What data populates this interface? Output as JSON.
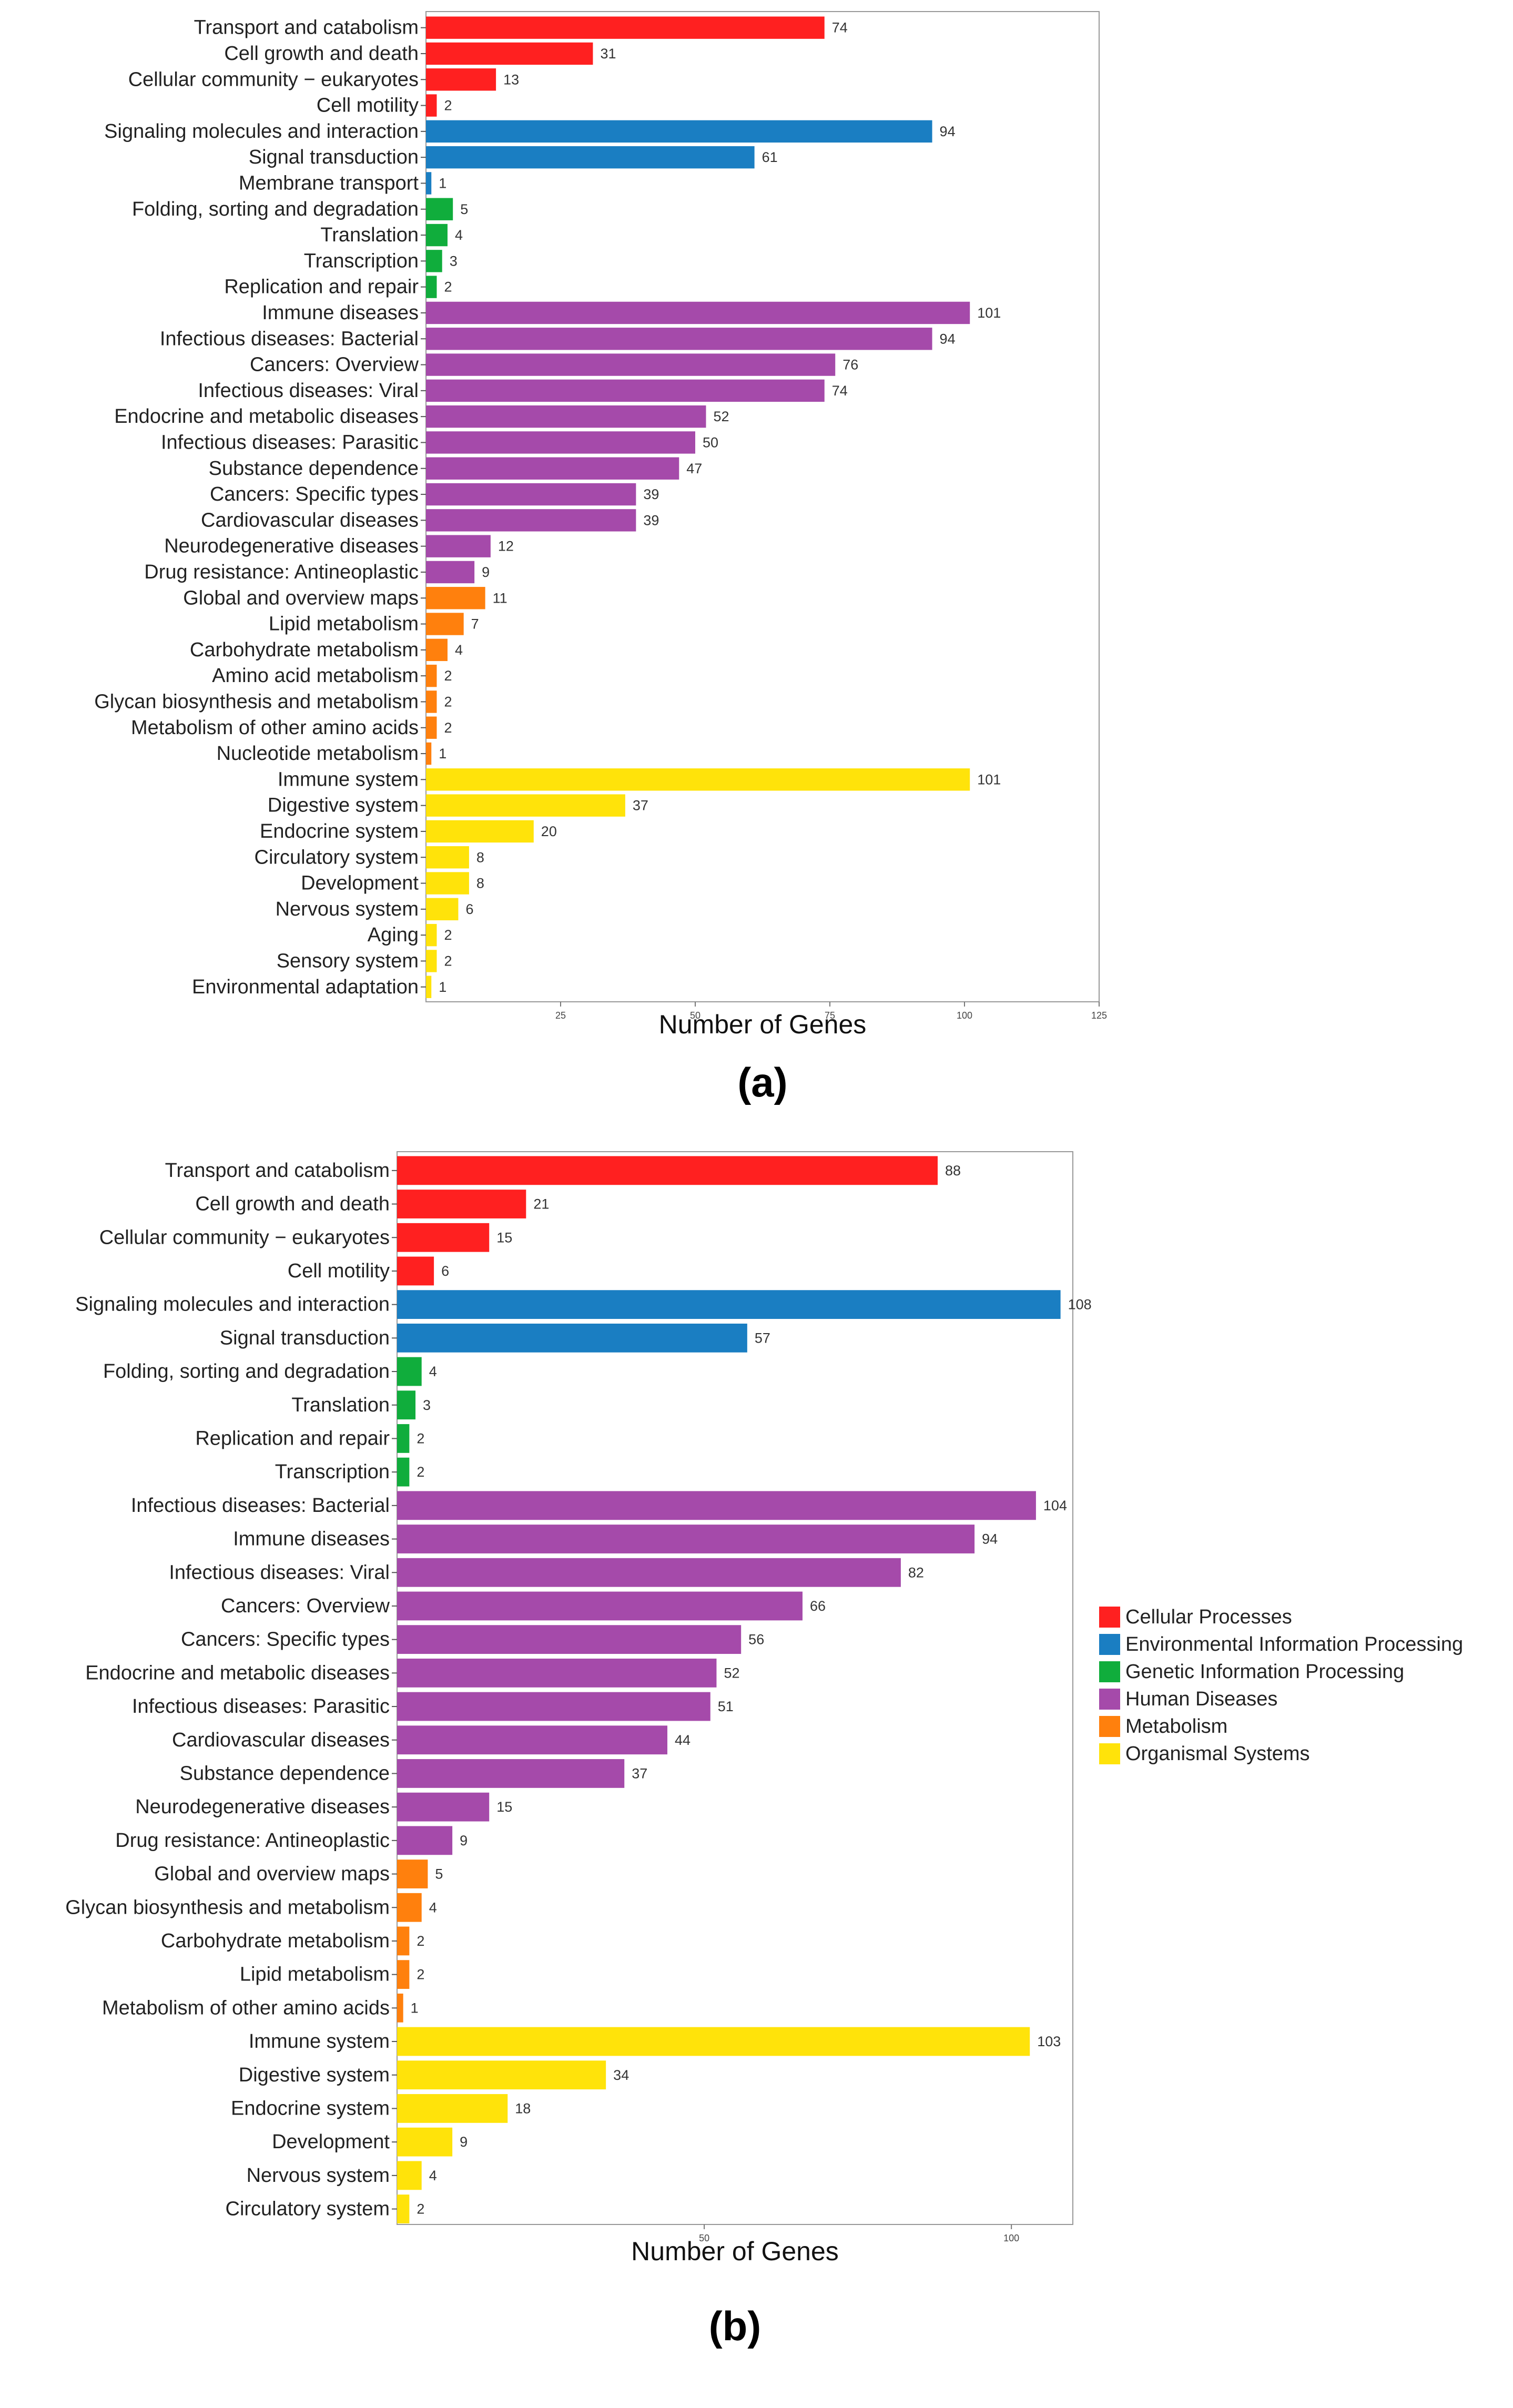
{
  "colors": {
    "Cellular Processes": "#FF2020",
    "Environmental Information Processing": "#1A7EC2",
    "Genetic Information Processing": "#10AD3C",
    "Human Diseases": "#A54AAA",
    "Metabolism": "#FF800D",
    "Organismal Systems": "#FFE30A"
  },
  "legend": {
    "items": [
      "Cellular Processes",
      "Environmental Information Processing",
      "Genetic Information Processing",
      "Human Diseases",
      "Metabolism",
      "Organismal Systems"
    ]
  },
  "chart_data": [
    {
      "type": "bar",
      "orientation": "horizontal",
      "panel_label": "(a)",
      "xlabel": "Number of Genes",
      "ylabel": "",
      "xlim": [
        0,
        125
      ],
      "xticks": [
        25,
        50,
        75,
        100,
        125
      ],
      "grid": false,
      "categories": [
        "Transport and catabolism",
        "Cell growth and death",
        "Cellular community − eukaryotes",
        "Cell motility",
        "Signaling molecules and interaction",
        "Signal transduction",
        "Membrane transport",
        "Folding, sorting and degradation",
        "Translation",
        "Transcription",
        "Replication and repair",
        "Immune diseases",
        "Infectious diseases: Bacterial",
        "Cancers: Overview",
        "Infectious diseases: Viral",
        "Endocrine and metabolic diseases",
        "Infectious diseases: Parasitic",
        "Substance dependence",
        "Cancers: Specific types",
        "Cardiovascular diseases",
        "Neurodegenerative diseases",
        "Drug resistance: Antineoplastic",
        "Global and overview maps",
        "Lipid metabolism",
        "Carbohydrate metabolism",
        "Amino acid metabolism",
        "Glycan biosynthesis and metabolism",
        "Metabolism of other amino acids",
        "Nucleotide metabolism",
        "Immune system",
        "Digestive system",
        "Endocrine system",
        "Circulatory system",
        "Development",
        "Nervous system",
        "Aging",
        "Sensory system",
        "Environmental adaptation"
      ],
      "values": [
        74,
        31,
        13,
        2,
        94,
        61,
        1,
        5,
        4,
        3,
        2,
        101,
        94,
        76,
        74,
        52,
        50,
        47,
        39,
        39,
        12,
        9,
        11,
        7,
        4,
        2,
        2,
        2,
        1,
        101,
        37,
        20,
        8,
        8,
        6,
        2,
        2,
        1
      ],
      "groups": [
        "Cellular Processes",
        "Cellular Processes",
        "Cellular Processes",
        "Cellular Processes",
        "Environmental Information Processing",
        "Environmental Information Processing",
        "Environmental Information Processing",
        "Genetic Information Processing",
        "Genetic Information Processing",
        "Genetic Information Processing",
        "Genetic Information Processing",
        "Human Diseases",
        "Human Diseases",
        "Human Diseases",
        "Human Diseases",
        "Human Diseases",
        "Human Diseases",
        "Human Diseases",
        "Human Diseases",
        "Human Diseases",
        "Human Diseases",
        "Human Diseases",
        "Metabolism",
        "Metabolism",
        "Metabolism",
        "Metabolism",
        "Metabolism",
        "Metabolism",
        "Metabolism",
        "Organismal Systems",
        "Organismal Systems",
        "Organismal Systems",
        "Organismal Systems",
        "Organismal Systems",
        "Organismal Systems",
        "Organismal Systems",
        "Organismal Systems",
        "Organismal Systems"
      ]
    },
    {
      "type": "bar",
      "orientation": "horizontal",
      "panel_label": "(b)",
      "xlabel": "Number of Genes",
      "ylabel": "",
      "xlim": [
        0,
        110
      ],
      "xticks": [
        50,
        100
      ],
      "grid": false,
      "categories": [
        "Transport and catabolism",
        "Cell growth and death",
        "Cellular community − eukaryotes",
        "Cell motility",
        "Signaling molecules and interaction",
        "Signal transduction",
        "Folding, sorting and degradation",
        "Translation",
        "Replication and repair",
        "Transcription",
        "Infectious diseases: Bacterial",
        "Immune diseases",
        "Infectious diseases: Viral",
        "Cancers: Overview",
        "Cancers: Specific types",
        "Endocrine and metabolic diseases",
        "Infectious diseases: Parasitic",
        "Cardiovascular diseases",
        "Substance dependence",
        "Neurodegenerative diseases",
        "Drug resistance: Antineoplastic",
        "Global and overview maps",
        "Glycan biosynthesis and metabolism",
        "Carbohydrate metabolism",
        "Lipid metabolism",
        "Metabolism of other amino acids",
        "Immune system",
        "Digestive system",
        "Endocrine system",
        "Development",
        "Nervous system",
        "Circulatory system"
      ],
      "values": [
        88,
        21,
        15,
        6,
        108,
        57,
        4,
        3,
        2,
        2,
        104,
        94,
        82,
        66,
        56,
        52,
        51,
        44,
        37,
        15,
        9,
        5,
        4,
        2,
        2,
        1,
        103,
        34,
        18,
        9,
        4,
        2
      ],
      "groups": [
        "Cellular Processes",
        "Cellular Processes",
        "Cellular Processes",
        "Cellular Processes",
        "Environmental Information Processing",
        "Environmental Information Processing",
        "Genetic Information Processing",
        "Genetic Information Processing",
        "Genetic Information Processing",
        "Genetic Information Processing",
        "Human Diseases",
        "Human Diseases",
        "Human Diseases",
        "Human Diseases",
        "Human Diseases",
        "Human Diseases",
        "Human Diseases",
        "Human Diseases",
        "Human Diseases",
        "Human Diseases",
        "Human Diseases",
        "Metabolism",
        "Metabolism",
        "Metabolism",
        "Metabolism",
        "Metabolism",
        "Organismal Systems",
        "Organismal Systems",
        "Organismal Systems",
        "Organismal Systems",
        "Organismal Systems",
        "Organismal Systems"
      ]
    }
  ]
}
